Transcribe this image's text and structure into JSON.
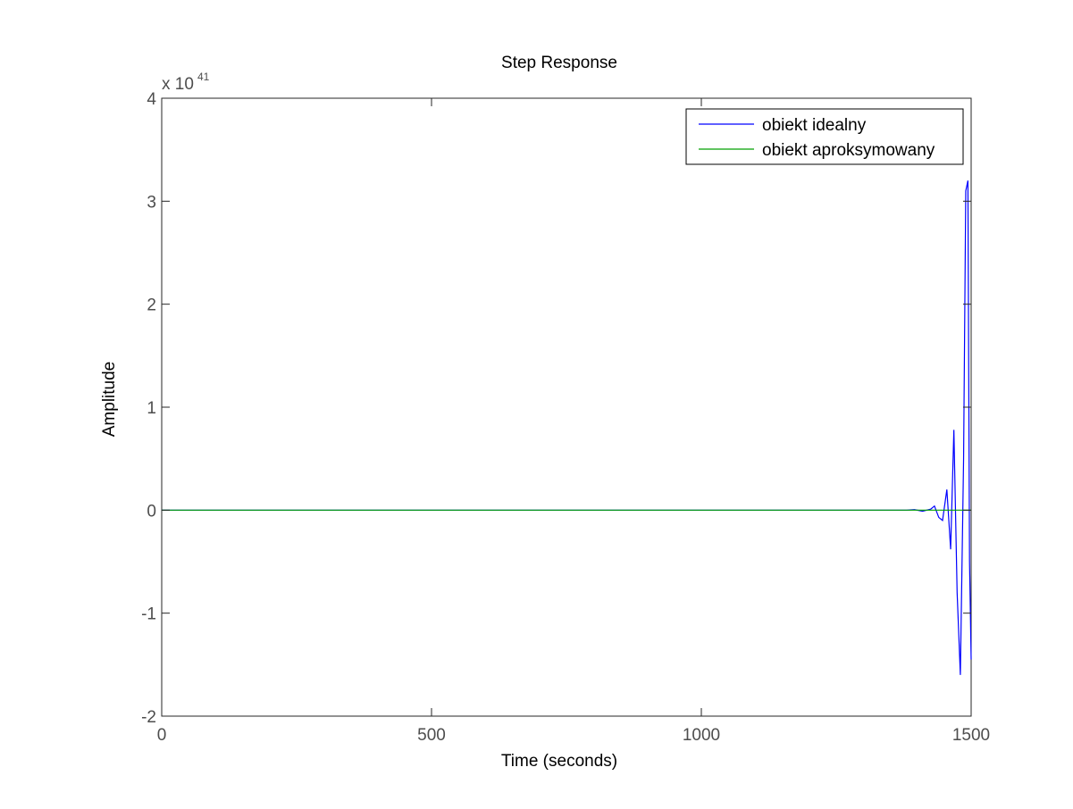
{
  "chart_data": {
    "type": "line",
    "title": "Step Response",
    "xlabel": "Time (seconds)",
    "ylabel": "Amplitude",
    "xlim": [
      0,
      1500
    ],
    "ylim": [
      -2,
      4
    ],
    "x_ticks": [
      0,
      500,
      1000,
      1500
    ],
    "y_ticks": [
      -2,
      -1,
      0,
      1,
      2,
      3,
      4
    ],
    "x_tick_labels": [
      "0",
      "500",
      "1000",
      "1500"
    ],
    "y_tick_labels": [
      "-2",
      "-1",
      "0",
      "1",
      "2",
      "3",
      "4"
    ],
    "y_exponent": {
      "base_label": "x 10",
      "power": "41"
    },
    "y_scale_multiplier": 1e+41,
    "grid": false,
    "legend": {
      "placement": "top-right"
    },
    "series": [
      {
        "name": "obiekt idealny",
        "color": "#0000ff",
        "oscillation": {
          "x": [
            1380,
            1395,
            1410,
            1425,
            1432,
            1440,
            1447,
            1455,
            1462,
            1468,
            1474,
            1480,
            1486,
            1490,
            1494,
            1497,
            1500
          ],
          "y": [
            0,
            0.005,
            -0.01,
            0.01,
            0.04,
            -0.07,
            -0.1,
            0.2,
            -0.38,
            0.78,
            -0.8,
            -1.6,
            0.5,
            3.1,
            3.2,
            -0.5,
            -1.45
          ]
        }
      },
      {
        "name": "obiekt aproksymowany",
        "color": "#00a000",
        "x": [
          0,
          1500
        ],
        "y": [
          0,
          0
        ]
      }
    ]
  }
}
